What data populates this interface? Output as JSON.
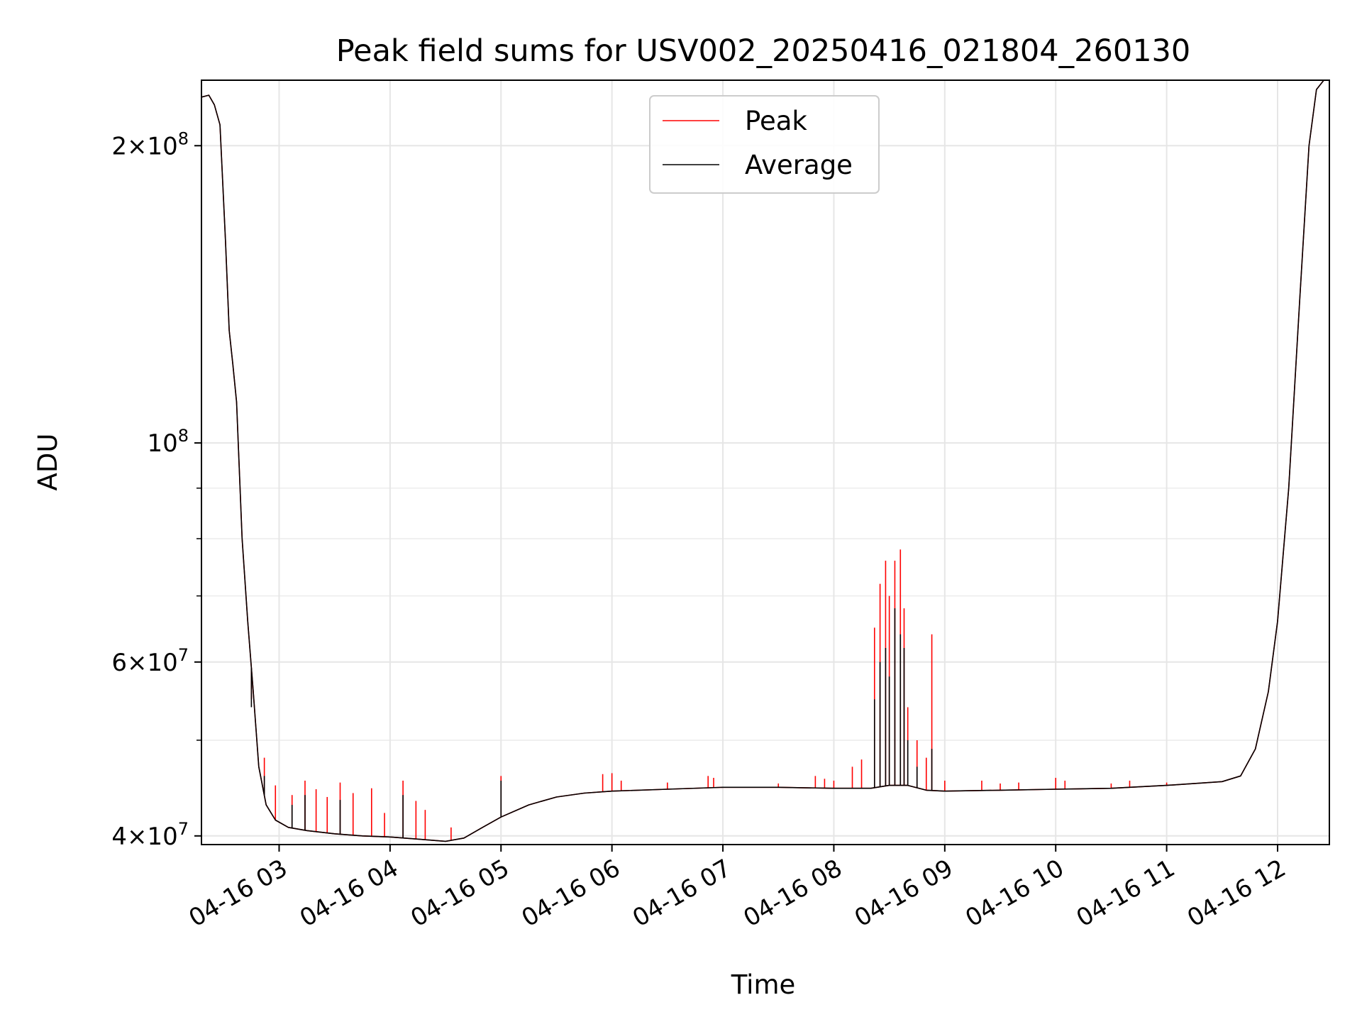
{
  "chart_data": {
    "type": "line",
    "title": "Peak field sums for USV002_20250416_021804_260130",
    "xlabel": "Time",
    "ylabel": "ADU",
    "yscale": "log",
    "xlim": [
      "2025-04-16 02:18",
      "2025-04-16 12:28"
    ],
    "ylim": [
      39200000,
      233000000
    ],
    "x_ticks": [
      "04-16 03",
      "04-16 04",
      "04-16 05",
      "04-16 06",
      "04-16 07",
      "04-16 08",
      "04-16 09",
      "04-16 10",
      "04-16 11",
      "04-16 12"
    ],
    "y_ticks": [
      {
        "label": "4×10⁷",
        "mant": "4",
        "exp": "7",
        "value": 40000000
      },
      {
        "label": "6×10⁷",
        "mant": "6",
        "exp": "7",
        "value": 60000000
      },
      {
        "label": "10⁸",
        "mant": "",
        "exp": "8",
        "value": 100000000
      },
      {
        "label": "2×10⁸",
        "mant": "2",
        "exp": "8",
        "value": 200000000
      }
    ],
    "grid": true,
    "legend_position": "upper center",
    "series": [
      {
        "name": "Peak",
        "color": "#ff0000",
        "points": [
          [
            "2025-04-16 02:18",
            224000000
          ],
          [
            "2025-04-16 02:22",
            225000000
          ],
          [
            "2025-04-16 02:25",
            220000000
          ],
          [
            "2025-04-16 02:28",
            210000000
          ],
          [
            "2025-04-16 02:31",
            160000000
          ],
          [
            "2025-04-16 02:33",
            130000000
          ],
          [
            "2025-04-16 02:35",
            120000000
          ],
          [
            "2025-04-16 02:37",
            110000000
          ],
          [
            "2025-04-16 02:40",
            80000000
          ],
          [
            "2025-04-16 02:43",
            66000000
          ],
          [
            "2025-04-16 02:46",
            56000000
          ],
          [
            "2025-04-16 02:49",
            47000000
          ],
          [
            "2025-04-16 02:53",
            43000000
          ],
          [
            "2025-04-16 02:58",
            41500000
          ],
          [
            "2025-04-16 03:05",
            40800000
          ],
          [
            "2025-04-16 03:15",
            40500000
          ],
          [
            "2025-04-16 03:30",
            40200000
          ],
          [
            "2025-04-16 03:45",
            40000000
          ],
          [
            "2025-04-16 04:00",
            39900000
          ],
          [
            "2025-04-16 04:15",
            39700000
          ],
          [
            "2025-04-16 04:30",
            39500000
          ],
          [
            "2025-04-16 04:40",
            39800000
          ],
          [
            "2025-04-16 04:50",
            40800000
          ],
          [
            "2025-04-16 05:00",
            41800000
          ],
          [
            "2025-04-16 05:15",
            43000000
          ],
          [
            "2025-04-16 05:30",
            43800000
          ],
          [
            "2025-04-16 05:45",
            44200000
          ],
          [
            "2025-04-16 06:00",
            44400000
          ],
          [
            "2025-04-16 06:30",
            44600000
          ],
          [
            "2025-04-16 07:00",
            44800000
          ],
          [
            "2025-04-16 07:30",
            44800000
          ],
          [
            "2025-04-16 08:00",
            44700000
          ],
          [
            "2025-04-16 08:20",
            44700000
          ],
          [
            "2025-04-16 08:30",
            45000000
          ],
          [
            "2025-04-16 08:40",
            45000000
          ],
          [
            "2025-04-16 08:50",
            44500000
          ],
          [
            "2025-04-16 09:00",
            44400000
          ],
          [
            "2025-04-16 09:30",
            44500000
          ],
          [
            "2025-04-16 10:00",
            44600000
          ],
          [
            "2025-04-16 10:30",
            44700000
          ],
          [
            "2025-04-16 11:00",
            45000000
          ],
          [
            "2025-04-16 11:30",
            45400000
          ],
          [
            "2025-04-16 11:40",
            46000000
          ],
          [
            "2025-04-16 11:48",
            49000000
          ],
          [
            "2025-04-16 11:55",
            56000000
          ],
          [
            "2025-04-16 12:00",
            66000000
          ],
          [
            "2025-04-16 12:06",
            90000000
          ],
          [
            "2025-04-16 12:12",
            140000000
          ],
          [
            "2025-04-16 12:17",
            200000000
          ],
          [
            "2025-04-16 12:21",
            228000000
          ],
          [
            "2025-04-16 12:25",
            233000000
          ]
        ],
        "spikes": [
          [
            "2025-04-16 02:45",
            55000000
          ],
          [
            "2025-04-16 02:52",
            48000000
          ],
          [
            "2025-04-16 02:58",
            45000000
          ],
          [
            "2025-04-16 03:07",
            44000000
          ],
          [
            "2025-04-16 03:14",
            45500000
          ],
          [
            "2025-04-16 03:20",
            44600000
          ],
          [
            "2025-04-16 03:26",
            43800000
          ],
          [
            "2025-04-16 03:33",
            45300000
          ],
          [
            "2025-04-16 03:40",
            44200000
          ],
          [
            "2025-04-16 03:50",
            44700000
          ],
          [
            "2025-04-16 03:57",
            42200000
          ],
          [
            "2025-04-16 04:07",
            45500000
          ],
          [
            "2025-04-16 04:14",
            43400000
          ],
          [
            "2025-04-16 04:19",
            42500000
          ],
          [
            "2025-04-16 04:33",
            40800000
          ],
          [
            "2025-04-16 05:00",
            46000000
          ],
          [
            "2025-04-16 05:55",
            46200000
          ],
          [
            "2025-04-16 06:00",
            46300000
          ],
          [
            "2025-04-16 06:05",
            45500000
          ],
          [
            "2025-04-16 06:30",
            45300000
          ],
          [
            "2025-04-16 06:52",
            46000000
          ],
          [
            "2025-04-16 06:55",
            45800000
          ],
          [
            "2025-04-16 07:30",
            45200000
          ],
          [
            "2025-04-16 07:50",
            46000000
          ],
          [
            "2025-04-16 07:55",
            45700000
          ],
          [
            "2025-04-16 08:00",
            45500000
          ],
          [
            "2025-04-16 08:10",
            47000000
          ],
          [
            "2025-04-16 08:15",
            47800000
          ],
          [
            "2025-04-16 08:22",
            65000000
          ],
          [
            "2025-04-16 08:25",
            72000000
          ],
          [
            "2025-04-16 08:28",
            76000000
          ],
          [
            "2025-04-16 08:30",
            70000000
          ],
          [
            "2025-04-16 08:33",
            76000000
          ],
          [
            "2025-04-16 08:36",
            78000000
          ],
          [
            "2025-04-16 08:38",
            68000000
          ],
          [
            "2025-04-16 08:40",
            54000000
          ],
          [
            "2025-04-16 08:45",
            50000000
          ],
          [
            "2025-04-16 08:50",
            48000000
          ],
          [
            "2025-04-16 08:53",
            64000000
          ],
          [
            "2025-04-16 09:00",
            45500000
          ],
          [
            "2025-04-16 09:20",
            45500000
          ],
          [
            "2025-04-16 09:30",
            45200000
          ],
          [
            "2025-04-16 09:40",
            45300000
          ],
          [
            "2025-04-16 10:00",
            45800000
          ],
          [
            "2025-04-16 10:05",
            45500000
          ],
          [
            "2025-04-16 10:30",
            45200000
          ],
          [
            "2025-04-16 10:40",
            45500000
          ],
          [
            "2025-04-16 11:00",
            45300000
          ]
        ]
      },
      {
        "name": "Average",
        "color": "#000000",
        "points": [
          [
            "2025-04-16 02:18",
            224000000
          ],
          [
            "2025-04-16 02:22",
            225000000
          ],
          [
            "2025-04-16 02:25",
            220000000
          ],
          [
            "2025-04-16 02:28",
            210000000
          ],
          [
            "2025-04-16 02:31",
            160000000
          ],
          [
            "2025-04-16 02:33",
            130000000
          ],
          [
            "2025-04-16 02:35",
            120000000
          ],
          [
            "2025-04-16 02:37",
            110000000
          ],
          [
            "2025-04-16 02:40",
            80000000
          ],
          [
            "2025-04-16 02:43",
            66000000
          ],
          [
            "2025-04-16 02:46",
            56000000
          ],
          [
            "2025-04-16 02:49",
            47000000
          ],
          [
            "2025-04-16 02:53",
            43000000
          ],
          [
            "2025-04-16 02:58",
            41500000
          ],
          [
            "2025-04-16 03:05",
            40800000
          ],
          [
            "2025-04-16 03:15",
            40500000
          ],
          [
            "2025-04-16 03:30",
            40200000
          ],
          [
            "2025-04-16 03:45",
            40000000
          ],
          [
            "2025-04-16 04:00",
            39900000
          ],
          [
            "2025-04-16 04:15",
            39700000
          ],
          [
            "2025-04-16 04:30",
            39500000
          ],
          [
            "2025-04-16 04:40",
            39800000
          ],
          [
            "2025-04-16 04:50",
            40800000
          ],
          [
            "2025-04-16 05:00",
            41800000
          ],
          [
            "2025-04-16 05:15",
            43000000
          ],
          [
            "2025-04-16 05:30",
            43800000
          ],
          [
            "2025-04-16 05:45",
            44200000
          ],
          [
            "2025-04-16 06:00",
            44400000
          ],
          [
            "2025-04-16 06:30",
            44600000
          ],
          [
            "2025-04-16 07:00",
            44800000
          ],
          [
            "2025-04-16 07:30",
            44800000
          ],
          [
            "2025-04-16 08:00",
            44700000
          ],
          [
            "2025-04-16 08:20",
            44700000
          ],
          [
            "2025-04-16 08:30",
            45000000
          ],
          [
            "2025-04-16 08:40",
            45000000
          ],
          [
            "2025-04-16 08:50",
            44500000
          ],
          [
            "2025-04-16 09:00",
            44400000
          ],
          [
            "2025-04-16 09:30",
            44500000
          ],
          [
            "2025-04-16 10:00",
            44600000
          ],
          [
            "2025-04-16 10:30",
            44700000
          ],
          [
            "2025-04-16 11:00",
            45000000
          ],
          [
            "2025-04-16 11:30",
            45400000
          ],
          [
            "2025-04-16 11:40",
            46000000
          ],
          [
            "2025-04-16 11:48",
            49000000
          ],
          [
            "2025-04-16 11:55",
            56000000
          ],
          [
            "2025-04-16 12:00",
            66000000
          ],
          [
            "2025-04-16 12:06",
            90000000
          ],
          [
            "2025-04-16 12:12",
            140000000
          ],
          [
            "2025-04-16 12:17",
            200000000
          ],
          [
            "2025-04-16 12:21",
            228000000
          ],
          [
            "2025-04-16 12:25",
            233000000
          ]
        ],
        "spikes": [
          [
            "2025-04-16 02:45",
            54000000
          ],
          [
            "2025-04-16 02:52",
            46000000
          ],
          [
            "2025-04-16 03:07",
            43000000
          ],
          [
            "2025-04-16 03:14",
            44000000
          ],
          [
            "2025-04-16 03:33",
            43500000
          ],
          [
            "2025-04-16 04:07",
            44000000
          ],
          [
            "2025-04-16 05:00",
            45500000
          ],
          [
            "2025-04-16 08:22",
            55000000
          ],
          [
            "2025-04-16 08:25",
            60000000
          ],
          [
            "2025-04-16 08:28",
            62000000
          ],
          [
            "2025-04-16 08:30",
            58000000
          ],
          [
            "2025-04-16 08:33",
            68000000
          ],
          [
            "2025-04-16 08:36",
            64000000
          ],
          [
            "2025-04-16 08:38",
            62000000
          ],
          [
            "2025-04-16 08:40",
            50000000
          ],
          [
            "2025-04-16 08:45",
            47000000
          ],
          [
            "2025-04-16 08:53",
            49000000
          ]
        ]
      }
    ]
  }
}
